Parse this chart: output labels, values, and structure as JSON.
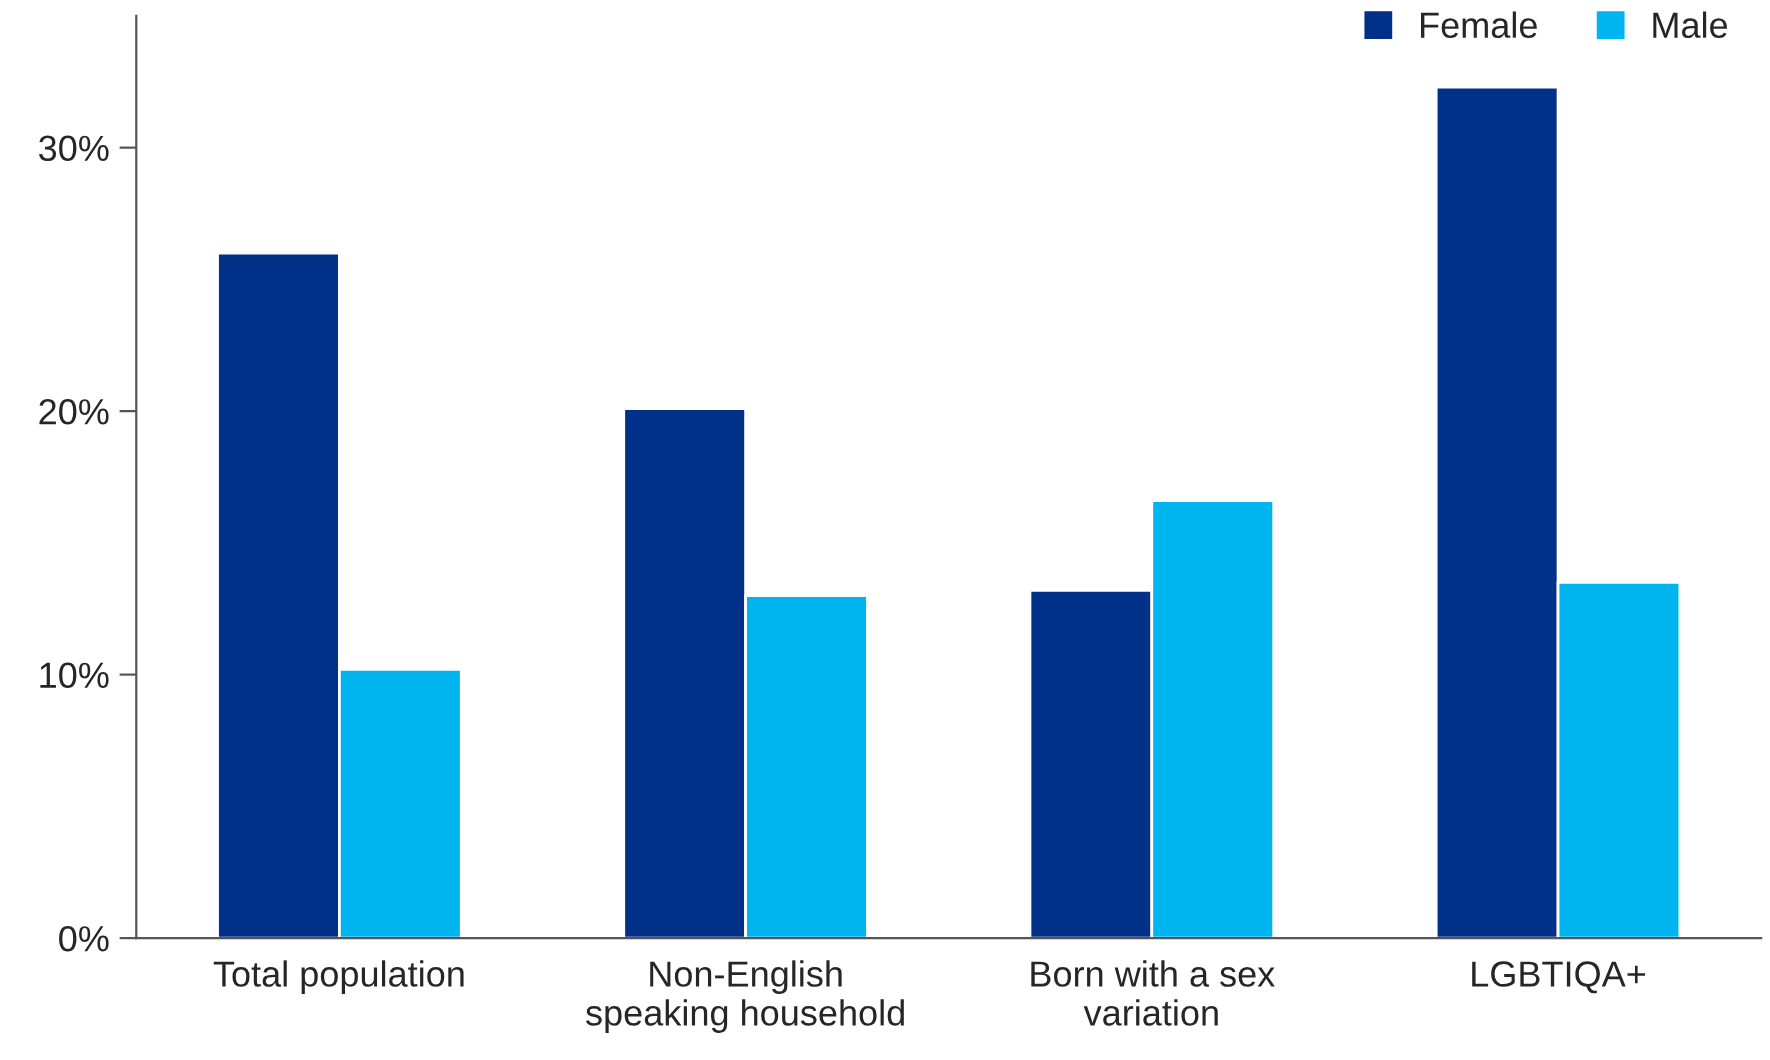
{
  "chart_data": {
    "type": "bar",
    "categories": [
      "Total population",
      "Non-English\nspeaking household",
      "Born with a sex\nvariation",
      "LGBTIQA+"
    ],
    "series": [
      {
        "name": "Female",
        "color": "#003087",
        "values": [
          26.0,
          20.1,
          13.2,
          32.3
        ]
      },
      {
        "name": "Male",
        "color": "#00b5ef",
        "values": [
          10.2,
          13.0,
          16.6,
          13.5
        ]
      }
    ],
    "ylim": [
      0,
      35
    ],
    "yticks": [
      {
        "value": 0,
        "label": "0%"
      },
      {
        "value": 10,
        "label": "10%"
      },
      {
        "value": 20,
        "label": "20%"
      },
      {
        "value": 30,
        "label": "30%"
      }
    ],
    "grid": false,
    "legend": "top right"
  }
}
